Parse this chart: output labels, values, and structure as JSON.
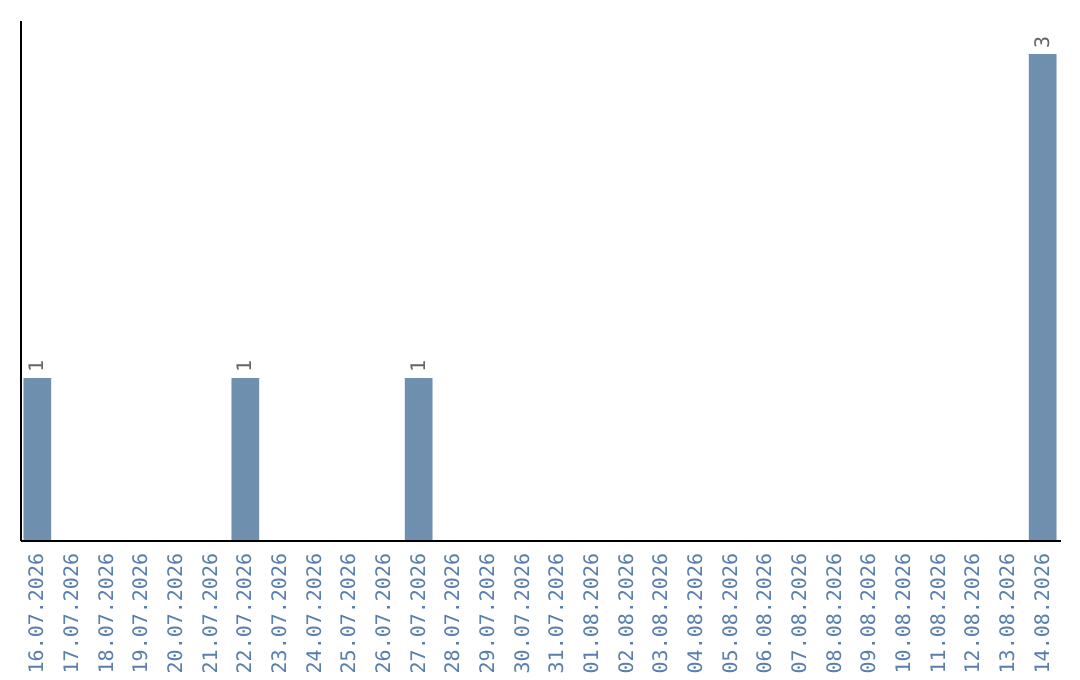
{
  "chart_data": {
    "type": "bar",
    "categories": [
      "16.07.2026",
      "17.07.2026",
      "18.07.2026",
      "19.07.2026",
      "20.07.2026",
      "21.07.2026",
      "22.07.2026",
      "23.07.2026",
      "24.07.2026",
      "25.07.2026",
      "26.07.2026",
      "27.07.2026",
      "28.07.2026",
      "29.07.2026",
      "30.07.2026",
      "31.07.2026",
      "01.08.2026",
      "02.08.2026",
      "03.08.2026",
      "04.08.2026",
      "05.08.2026",
      "06.08.2026",
      "07.08.2026",
      "08.08.2026",
      "09.08.2026",
      "10.08.2026",
      "11.08.2026",
      "12.08.2026",
      "13.08.2026",
      "14.08.2026"
    ],
    "values": [
      1,
      0,
      0,
      0,
      0,
      0,
      1,
      0,
      0,
      0,
      0,
      1,
      0,
      0,
      0,
      0,
      0,
      0,
      0,
      0,
      0,
      0,
      0,
      0,
      0,
      0,
      0,
      0,
      0,
      3
    ],
    "value_labels": [
      "1",
      null,
      null,
      null,
      null,
      null,
      "1",
      null,
      null,
      null,
      null,
      "1",
      null,
      null,
      null,
      null,
      null,
      null,
      null,
      null,
      null,
      null,
      null,
      null,
      null,
      null,
      null,
      null,
      null,
      "3"
    ],
    "color": "#6e8fae",
    "tick_labels": "x",
    "grid": false
  }
}
